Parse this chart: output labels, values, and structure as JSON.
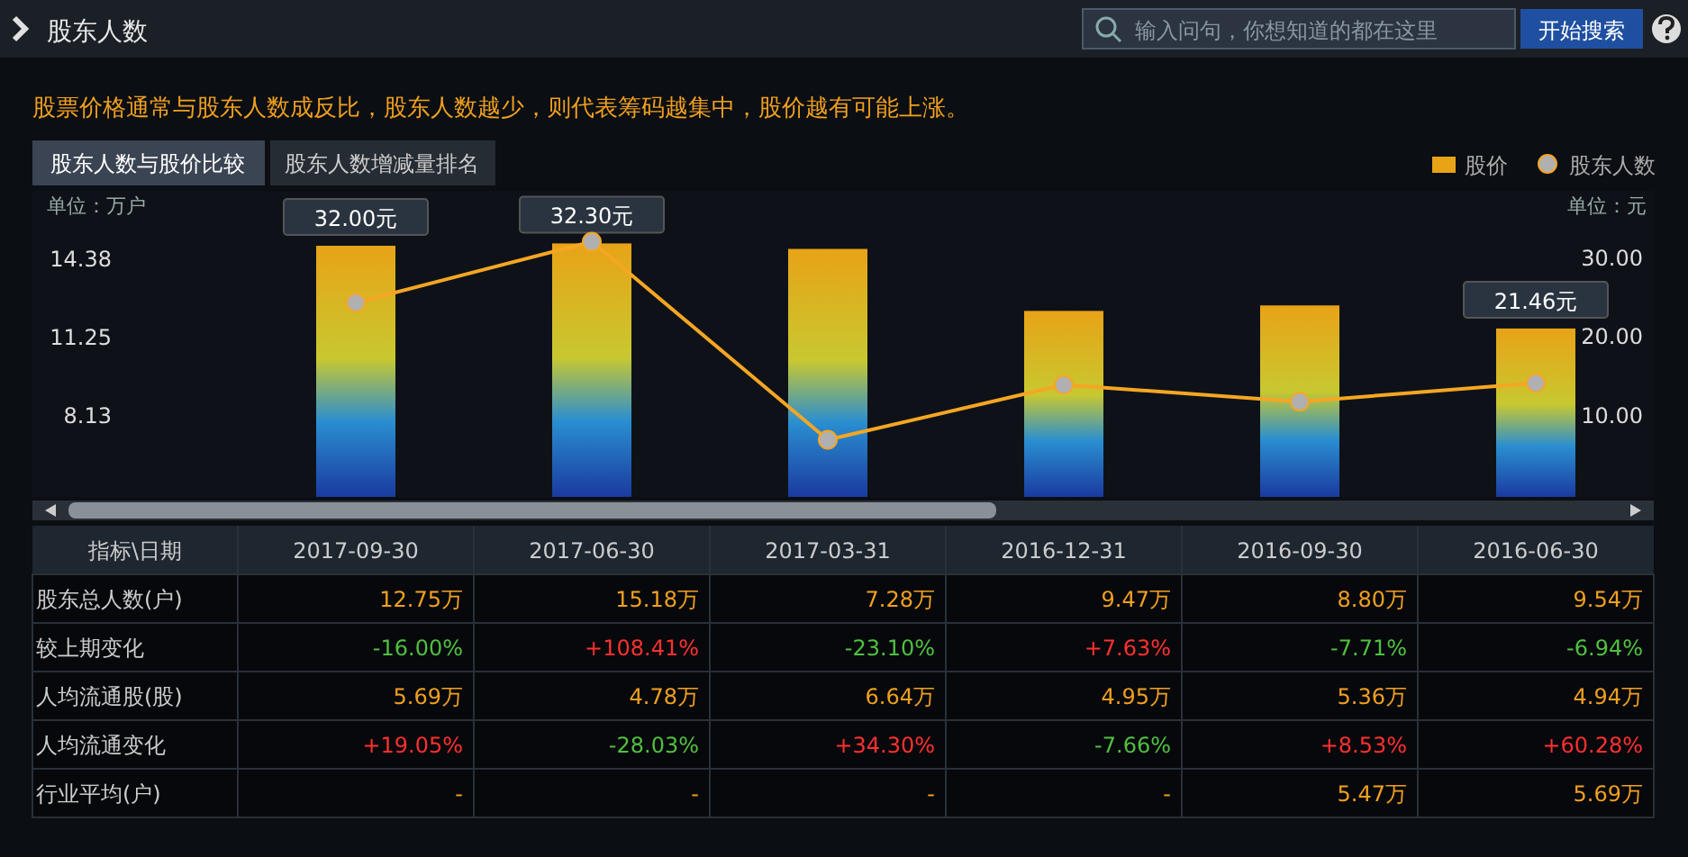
{
  "chart_data": [
    {
      "type": "bar",
      "title": "股东人数",
      "subtitle": "股票价格通常与股东人数成反比，股东人数越少，则代表筹码越集中，股价越有可能上涨。",
      "ylabel": "单位：万户",
      "y2label": "单位：元",
      "annotations": [
        "输入问句，你想知道的都在这里",
        "开始搜索",
        "股东人数与股价比较",
        "股东人数增减量排名"
      ],
      "categories": [
        "2017-09-30",
        "2017-06-30",
        "2017-03-31",
        "2016-12-31",
        "2016-09-30",
        "2016-06-30"
      ],
      "ylim": [
        5,
        17.21
      ],
      "yticks": [
        {
          "value": 8.13,
          "label": "8.13"
        },
        {
          "value": 11.25,
          "label": "11.25"
        },
        {
          "value": 14.38,
          "label": "14.38"
        }
      ],
      "y2lim": [
        0,
        39
      ],
      "y2ticks": [
        {
          "value": 10,
          "label": "10.00"
        },
        {
          "value": 20,
          "label": "20.00"
        },
        {
          "value": 30,
          "label": "30.00"
        }
      ],
      "legend": "top right",
      "marker": "circle",
      "grid": false,
      "series": [
        {
          "name": "股价",
          "axis": "y2",
          "color": "#e8a317",
          "values": [
            32.0,
            32.3,
            31.6,
            23.7,
            24.4,
            21.46
          ],
          "value_labels": [
            "32.00元",
            "32.30元",
            null,
            null,
            null,
            "21.46元"
          ]
        },
        {
          "name": "股东人数",
          "type": "line",
          "axis": "y",
          "color": "#f5a623",
          "values": [
            12.75,
            15.18,
            7.28,
            9.47,
            8.8,
            9.54
          ]
        }
      ]
    },
    {
      "type": "other",
      "ylabel": "指标\\日期",
      "y_categories": [
        "股东总人数(户)",
        "较上期变化",
        "人均流通股(股)",
        "人均流通变化",
        "行业平均(户)"
      ],
      "colors": [
        [
          "#f0a020",
          "#f0a020",
          "#f0a020",
          "#f0a020",
          "#f0a020",
          "#f0a020"
        ],
        [
          "#50c040",
          "#ff3030",
          "#50c040",
          "#ff3030",
          "#50c040",
          "#50c040"
        ],
        [
          "#f0a020",
          "#f0a020",
          "#f0a020",
          "#f0a020",
          "#f0a020",
          "#f0a020"
        ],
        [
          "#ff3030",
          "#50c040",
          "#ff3030",
          "#50c040",
          "#ff3030",
          "#ff3030"
        ],
        [
          "#f0a020",
          "#f0a020",
          "#f0a020",
          "#f0a020",
          "#f0a020",
          "#f0a020"
        ]
      ],
      "cell_labels": [
        [
          "12.75万",
          "15.18万",
          "7.28万",
          "9.47万",
          "8.80万",
          "9.54万"
        ],
        [
          "-16.00%",
          "+108.41%",
          "-23.10%",
          "+7.63%",
          "-7.71%",
          "-6.94%"
        ],
        [
          "5.69万",
          "4.78万",
          "6.64万",
          "4.95万",
          "5.36万",
          "4.94万"
        ],
        [
          "+19.05%",
          "-28.03%",
          "+34.30%",
          "-7.66%",
          "+8.53%",
          "+60.28%"
        ],
        [
          "-",
          "-",
          "-",
          "-",
          "5.47万",
          "5.69万"
        ]
      ]
    }
  ]
}
